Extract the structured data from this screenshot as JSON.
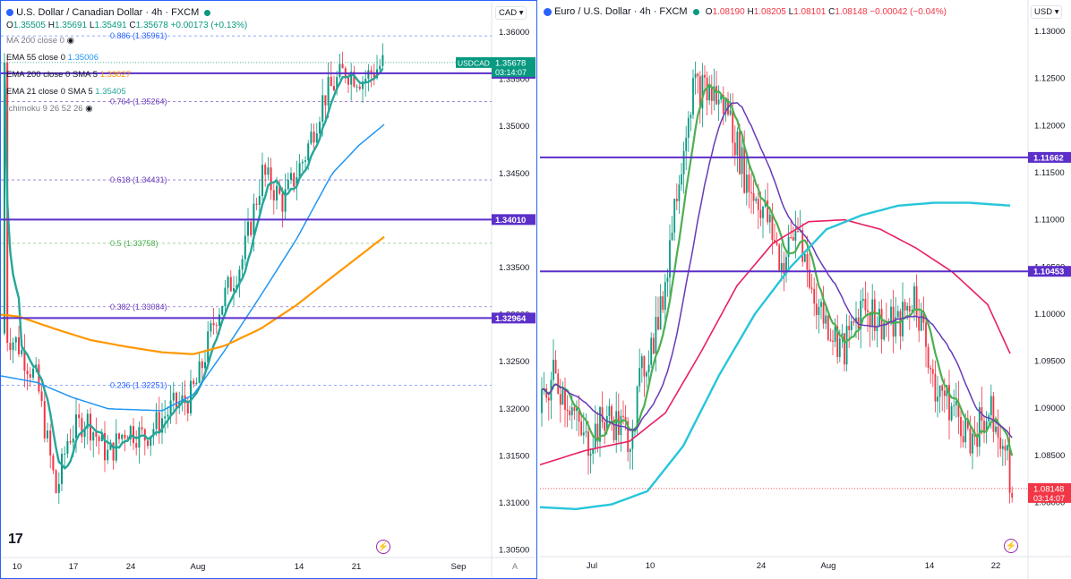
{
  "left": {
    "title": "U.S. Dollar / Canadian Dollar · 4h · FXCM",
    "ohlc": {
      "o_label": "O",
      "o": "1.35505",
      "h_label": "H",
      "h": "1.35691",
      "l_label": "L",
      "l": "1.35491",
      "c_label": "C",
      "c": "1.35678",
      "change": "+0.00173 (+0.13%)"
    },
    "currency": "CAD",
    "indicators": [
      {
        "name": "MA 200 close 0",
        "value": ""
      },
      {
        "name": "EMA 55 close 0",
        "value": "1.35006"
      },
      {
        "name": "EMA 200 close 0 SMA 5",
        "value": "1.33827"
      },
      {
        "name": "EMA 21 close 0 SMA 5",
        "value": "1.35405"
      },
      {
        "name": "Ichimoku 9 26 52 26",
        "value": ""
      }
    ],
    "fib": [
      {
        "label": "0.886 (1.35961)",
        "price": 1.35961,
        "color": "#2962ff"
      },
      {
        "label": "0.764 (1.35264)",
        "price": 1.35264,
        "color": "#673ab7"
      },
      {
        "label": "0.618 (1.34431)",
        "price": 1.34431,
        "color": "#673ab7"
      },
      {
        "label": "0.5 (1.33758)",
        "price": 1.33758,
        "color": "#4caf50"
      },
      {
        "label": "0.382 (1.33084)",
        "price": 1.33084,
        "color": "#673ab7"
      },
      {
        "label": "0.236 (1.32251)",
        "price": 1.32251,
        "color": "#2962ff"
      }
    ],
    "price_ticks": [
      "1.36000",
      "1.35500",
      "1.35000",
      "1.34500",
      "1.34000",
      "1.33500",
      "1.33000",
      "1.32500",
      "1.32000",
      "1.31500",
      "1.31000",
      "1.30500"
    ],
    "date_ticks": [
      "10",
      "17",
      "24",
      "Aug",
      "14",
      "21",
      "Sep"
    ],
    "hlines": [
      {
        "label": "1.35564",
        "price": 1.35564
      },
      {
        "label": "1.34010",
        "price": 1.3401
      },
      {
        "label": "1.32964",
        "price": 1.32964
      }
    ],
    "price_badge": {
      "symbol": "USDCAD",
      "price": "1.35678",
      "timer": "03:14:07"
    },
    "auto_label": "A"
  },
  "right": {
    "title": "Euro / U.S. Dollar · 4h · FXCM",
    "ohlc": {
      "o_label": "O",
      "o": "1.08190",
      "h_label": "H",
      "h": "1.08205",
      "l_label": "L",
      "l": "1.08101",
      "c_label": "C",
      "c": "1.08148",
      "change": "−0.00042 (−0.04%)"
    },
    "currency": "USD",
    "price_ticks": [
      "1.13000",
      "1.12500",
      "1.12000",
      "1.11500",
      "1.11000",
      "1.10500",
      "1.10000",
      "1.09500",
      "1.09000",
      "1.08500",
      "1.08000"
    ],
    "date_ticks": [
      "Jul",
      "10",
      "24",
      "Aug",
      "14",
      "22"
    ],
    "hlines": [
      {
        "label": "1.11662",
        "price": 1.11662
      },
      {
        "label": "1.10453",
        "price": 1.10453
      }
    ],
    "price_badge": {
      "price": "1.08148",
      "timer": "03:14:07"
    }
  },
  "colors": {
    "up": "#089981",
    "down": "#f23645",
    "line_purple": "#5b2fc9",
    "ema21": "#26a69a",
    "ema55": "#2196f3",
    "ema200_orange": "#ff9800",
    "eur_green": "#4caf50",
    "eur_purple": "#673ab7",
    "eur_red": "#e91e63",
    "eur_cyan": "#26c6da"
  },
  "chart_data": [
    {
      "type": "line",
      "title": "U.S. Dollar / Canadian Dollar · 4h · FXCM",
      "ylim": [
        1.305,
        1.362
      ],
      "x": [
        "10",
        "17",
        "24",
        "Aug",
        "14",
        "21"
      ],
      "series": [
        {
          "name": "price",
          "values": [
            1.3125,
            1.3162,
            1.3205,
            1.3235,
            1.3455,
            1.3568
          ]
        },
        {
          "name": "EMA 21 close 0 SMA 5",
          "values": [
            1.319,
            1.318,
            1.319,
            1.3225,
            1.344,
            1.35405
          ]
        },
        {
          "name": "EMA 55 close 0",
          "values": [
            1.3235,
            1.3205,
            1.32,
            1.322,
            1.338,
            1.35006
          ]
        },
        {
          "name": "EMA 200 close 0 SMA 5",
          "values": [
            1.327,
            1.3265,
            1.3258,
            1.3255,
            1.3305,
            1.33827
          ]
        }
      ]
    },
    {
      "type": "line",
      "title": "Euro / U.S. Dollar · 4h · FXCM",
      "ylim": [
        1.079,
        1.131
      ],
      "x": [
        "Jul",
        "10",
        "24",
        "Aug",
        "14",
        "22"
      ],
      "series": [
        {
          "name": "price",
          "values": [
            1.091,
            1.096,
            1.113,
            1.1005,
            1.0975,
            1.08148
          ]
        }
      ]
    }
  ]
}
